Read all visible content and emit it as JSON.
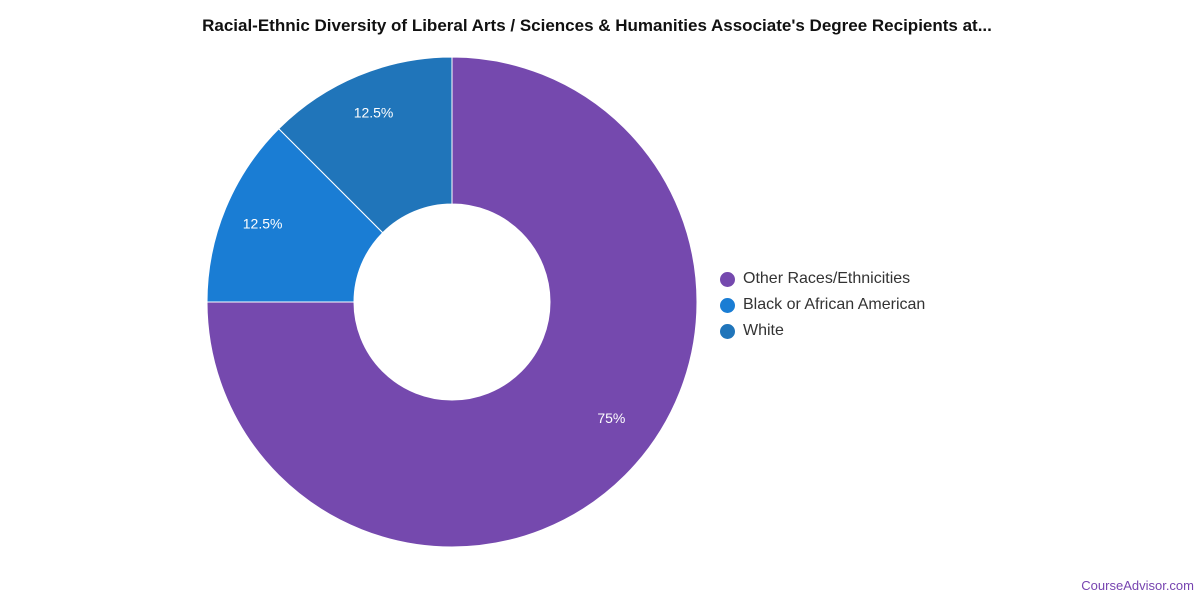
{
  "chart_data": {
    "type": "pie",
    "donut": true,
    "title": "Racial-Ethnic Diversity of Liberal Arts / Sciences & Humanities Associate's Degree Recipients at...",
    "series": [
      {
        "name": "Other Races/Ethnicities",
        "value": 75,
        "label": "75%",
        "color": "#7549ae"
      },
      {
        "name": "Black or African American",
        "value": 12.5,
        "label": "12.5%",
        "color": "#1a7dd4"
      },
      {
        "name": "White",
        "value": 12.5,
        "label": "12.5%",
        "color": "#2075ba"
      }
    ],
    "legend_position": "right"
  },
  "watermark": "CourseAdvisor.com"
}
